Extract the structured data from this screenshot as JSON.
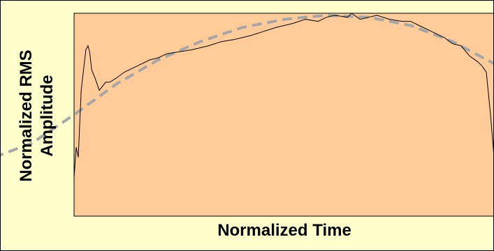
{
  "chart_data": {
    "type": "line",
    "title": "",
    "xlabel": "Normalized Time",
    "ylabel_lines": [
      "Normalized RMS",
      "Amplitude"
    ],
    "xlim": [
      0,
      1
    ],
    "ylim": [
      0,
      1
    ],
    "grid": false,
    "legend": "none",
    "colors": {
      "figure_background": "#ffffcc",
      "plot_background": "#ffcc99",
      "measured_line": "#000000",
      "fit_curve": "#a6a6a6"
    },
    "series": [
      {
        "style": "solid",
        "x": [
          0,
          0.005,
          0.01,
          0.017,
          0.022,
          0.028,
          0.033,
          0.037,
          0.042,
          0.05,
          0.06,
          0.075,
          0.085,
          0.1,
          0.12,
          0.15,
          0.18,
          0.2,
          0.22,
          0.25,
          0.28,
          0.3,
          0.32,
          0.35,
          0.38,
          0.4,
          0.42,
          0.45,
          0.48,
          0.5,
          0.52,
          0.55,
          0.58,
          0.6,
          0.62,
          0.65,
          0.66,
          0.68,
          0.7,
          0.72,
          0.75,
          0.78,
          0.8,
          0.82,
          0.85,
          0.88,
          0.9,
          0.92,
          0.94,
          0.96,
          0.97,
          0.98,
          0.99,
          1.0
        ],
        "y": [
          0.19,
          0.34,
          0.29,
          0.62,
          0.71,
          0.82,
          0.84,
          0.81,
          0.72,
          0.68,
          0.62,
          0.66,
          0.66,
          0.68,
          0.71,
          0.74,
          0.77,
          0.78,
          0.8,
          0.81,
          0.82,
          0.83,
          0.84,
          0.86,
          0.87,
          0.88,
          0.89,
          0.91,
          0.93,
          0.94,
          0.95,
          0.97,
          0.96,
          0.98,
          0.99,
          0.98,
          1.0,
          0.97,
          0.98,
          0.99,
          0.97,
          0.96,
          0.96,
          0.94,
          0.91,
          0.88,
          0.85,
          0.84,
          0.79,
          0.76,
          0.74,
          0.71,
          0.5,
          0.25
        ]
      },
      {
        "style": "dashed",
        "x": [
          0,
          0.1,
          0.2,
          0.3,
          0.4,
          0.5,
          0.6,
          0.7,
          0.8,
          0.9,
          1.0
        ],
        "y": [
          0.5,
          0.65,
          0.77,
          0.86,
          0.93,
          0.97,
          0.99,
          0.98,
          0.94,
          0.86,
          0.75
        ],
        "extends_beyond_plot": {
          "x": [
            -0.19,
            -0.1,
            1.0,
            1.02
          ],
          "y": [
            0.29,
            0.36,
            0.75,
            0.72
          ]
        }
      }
    ]
  }
}
